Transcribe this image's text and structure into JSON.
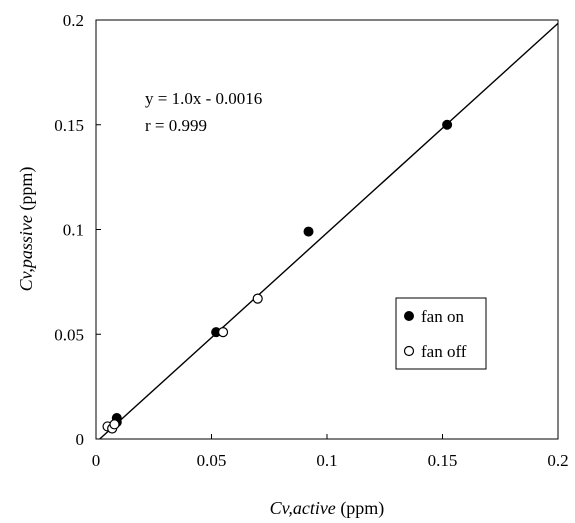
{
  "chart_data": {
    "type": "scatter",
    "xlabel_var": "Cv,active",
    "xlabel_unit": " (ppm)",
    "ylabel_var": "Cv,passive",
    "ylabel_unit": " (ppm)",
    "xlim": [
      0,
      0.2
    ],
    "ylim": [
      0,
      0.2
    ],
    "x_ticks": [
      0,
      0.05,
      0.1,
      0.15,
      0.2
    ],
    "y_ticks": [
      0,
      0.05,
      0.1,
      0.15,
      0.2
    ],
    "x_tick_labels": [
      "0",
      "0.05",
      "0.1",
      "0.15",
      "0.2"
    ],
    "y_tick_labels": [
      "0",
      "0.05",
      "0.1",
      "0.15",
      "0.2"
    ],
    "grid": false,
    "legend_position": "center-right",
    "annotations": [
      "y = 1.0x - 0.0016",
      "r = 0.999"
    ],
    "fit_line": {
      "slope": 1.0,
      "intercept": -0.0016
    },
    "series": [
      {
        "name": "fan on",
        "marker": "filled-circle",
        "color": "#000000",
        "points": [
          {
            "x": 0.009,
            "y": 0.01
          },
          {
            "x": 0.009,
            "y": 0.008
          },
          {
            "x": 0.052,
            "y": 0.051
          },
          {
            "x": 0.092,
            "y": 0.099
          },
          {
            "x": 0.152,
            "y": 0.15
          }
        ]
      },
      {
        "name": "fan off",
        "marker": "open-circle",
        "color": "#000000",
        "points": [
          {
            "x": 0.005,
            "y": 0.006
          },
          {
            "x": 0.007,
            "y": 0.005
          },
          {
            "x": 0.008,
            "y": 0.007
          },
          {
            "x": 0.055,
            "y": 0.051
          },
          {
            "x": 0.07,
            "y": 0.067
          }
        ]
      }
    ]
  }
}
